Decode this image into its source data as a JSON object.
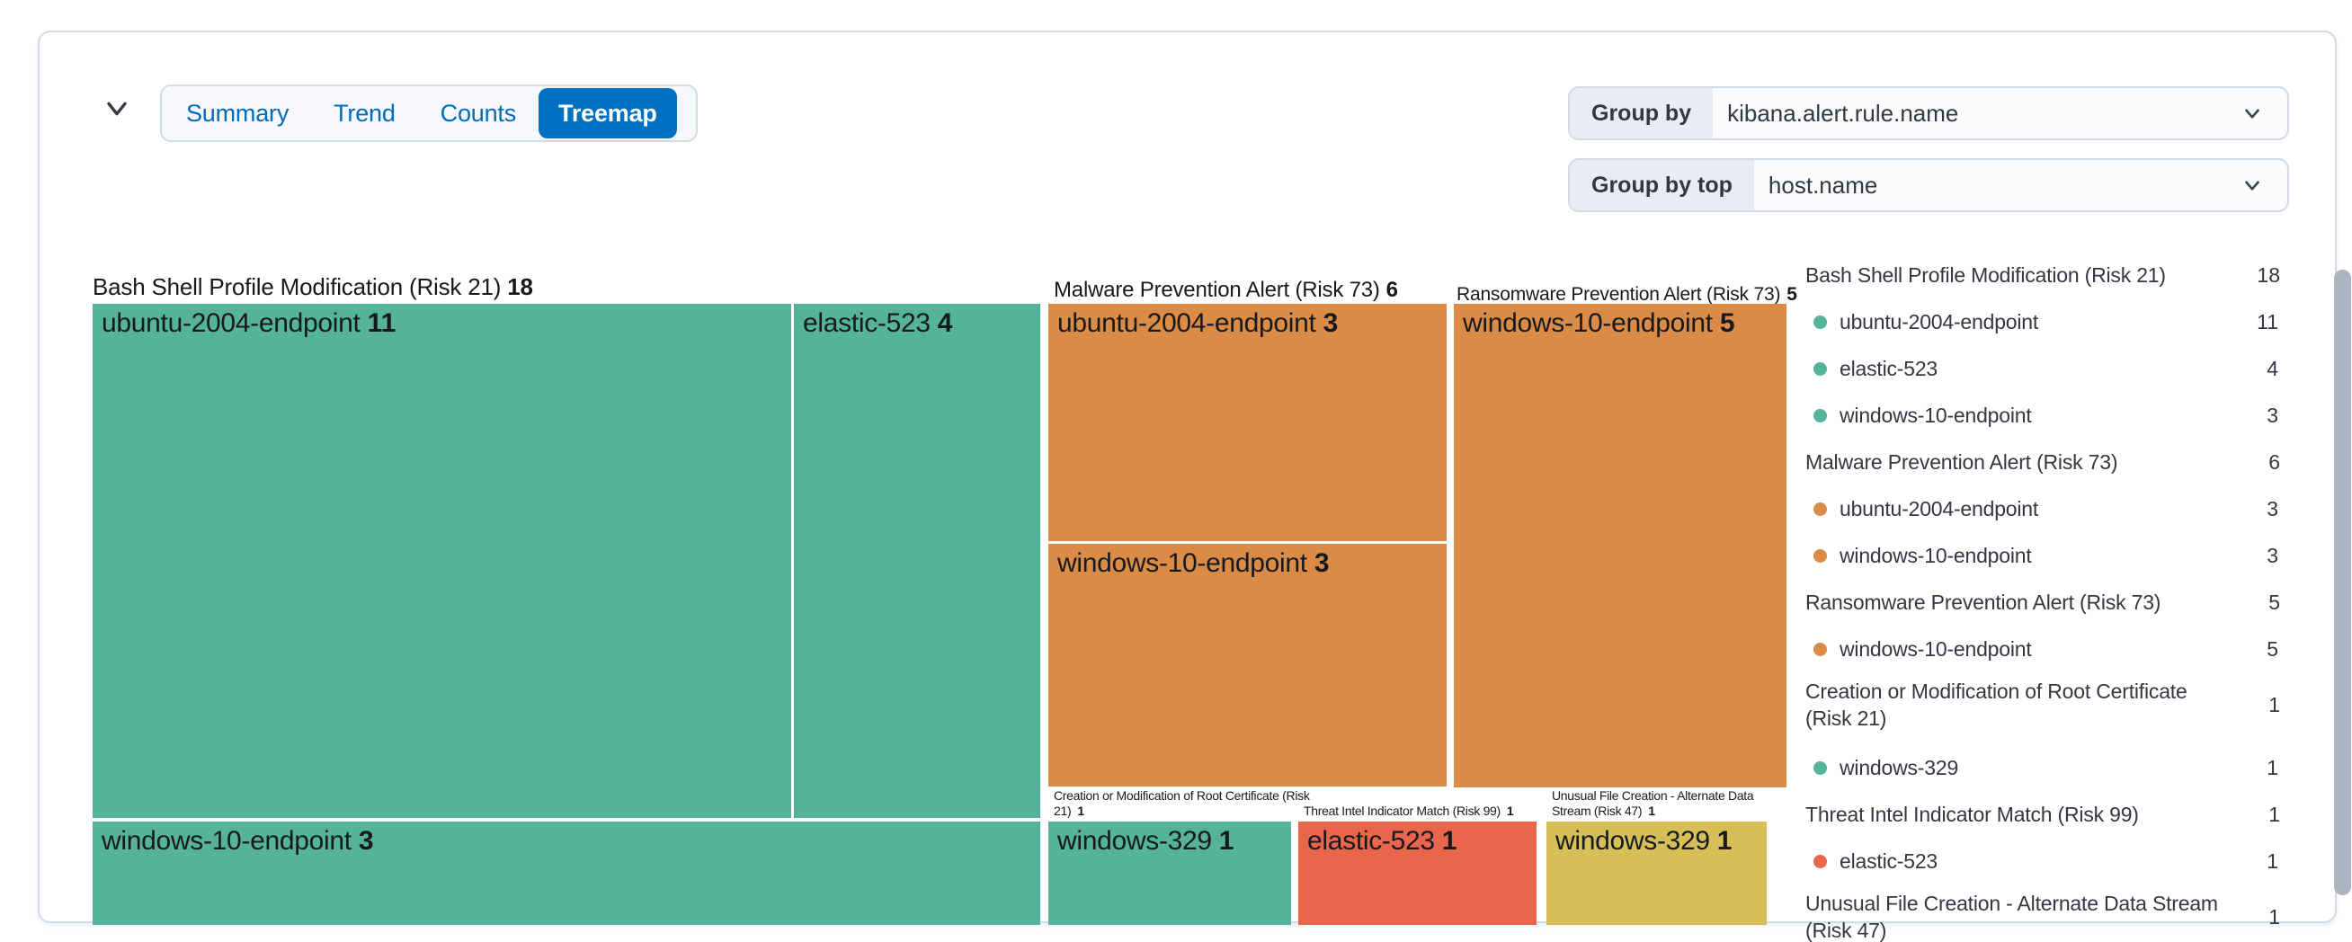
{
  "panel": {
    "view_tabs": [
      {
        "label": "Summary",
        "selected": false
      },
      {
        "label": "Trend",
        "selected": false
      },
      {
        "label": "Counts",
        "selected": false
      },
      {
        "label": "Treemap",
        "selected": true
      }
    ],
    "group_by": {
      "label": "Group by",
      "value": "kibana.alert.rule.name"
    },
    "group_by_top": {
      "label": "Group by top",
      "value": "host.name"
    }
  },
  "colors": {
    "green": "#54B399",
    "orange": "#DA8B45",
    "red": "#E7664C",
    "yellow": "#D6BF57",
    "accent": "#0071C2",
    "tab_text": "#006BB8",
    "scrollbar": "#ACB4C1"
  },
  "chart_data": {
    "type": "treemap",
    "group_by_field": "kibana.alert.rule.name",
    "group_by_top_field": "host.name",
    "groups": [
      {
        "label": "Bash Shell Profile Modification (Risk 21)",
        "value": 18,
        "color": "green",
        "children": [
          {
            "name": "ubuntu-2004-endpoint",
            "value": 11
          },
          {
            "name": "elastic-523",
            "value": 4
          },
          {
            "name": "windows-10-endpoint",
            "value": 3
          }
        ]
      },
      {
        "label": "Malware Prevention Alert (Risk 73)",
        "value": 6,
        "color": "orange",
        "children": [
          {
            "name": "ubuntu-2004-endpoint",
            "value": 3
          },
          {
            "name": "windows-10-endpoint",
            "value": 3
          }
        ]
      },
      {
        "label": "Ransomware Prevention Alert (Risk 73)",
        "value": 5,
        "color": "orange",
        "children": [
          {
            "name": "windows-10-endpoint",
            "value": 5
          }
        ]
      },
      {
        "label": "Creation or Modification of Root Certificate (Risk 21)",
        "value": 1,
        "color": "green",
        "children": [
          {
            "name": "windows-329",
            "value": 1
          }
        ]
      },
      {
        "label": "Threat Intel Indicator Match (Risk 99)",
        "value": 1,
        "color": "red",
        "children": [
          {
            "name": "elastic-523",
            "value": 1
          }
        ]
      },
      {
        "label": "Unusual File Creation - Alternate Data Stream (Risk 47)",
        "value": 1,
        "color": "yellow",
        "children": [
          {
            "name": "windows-329",
            "value": 1
          }
        ]
      }
    ],
    "legend": [
      {
        "label": "Bash Shell Profile Modification (Risk 21)",
        "value": 18,
        "dot": null
      },
      {
        "label": "ubuntu-2004-endpoint",
        "value": 11,
        "dot": "green"
      },
      {
        "label": "elastic-523",
        "value": 4,
        "dot": "green"
      },
      {
        "label": "windows-10-endpoint",
        "value": 3,
        "dot": "green"
      },
      {
        "label": "Malware Prevention Alert (Risk 73)",
        "value": 6,
        "dot": null
      },
      {
        "label": "ubuntu-2004-endpoint",
        "value": 3,
        "dot": "orange"
      },
      {
        "label": "windows-10-endpoint",
        "value": 3,
        "dot": "orange"
      },
      {
        "label": "Ransomware Prevention Alert (Risk 73)",
        "value": 5,
        "dot": null
      },
      {
        "label": "windows-10-endpoint",
        "value": 5,
        "dot": "orange"
      },
      {
        "label": "Creation or Modification of Root Certificate (Risk 21)",
        "value": 1,
        "dot": null
      },
      {
        "label": "windows-329",
        "value": 1,
        "dot": "green"
      },
      {
        "label": "Threat Intel Indicator Match (Risk 99)",
        "value": 1,
        "dot": null
      },
      {
        "label": "elastic-523",
        "value": 1,
        "dot": "red"
      },
      {
        "label": "Unusual File Creation - Alternate Data Stream (Risk 47)",
        "value": 1,
        "dot": null
      }
    ]
  }
}
